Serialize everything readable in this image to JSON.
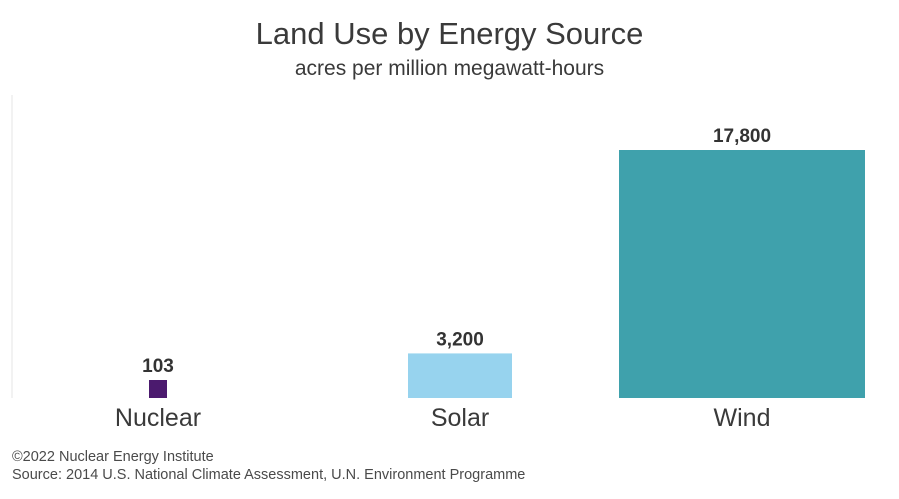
{
  "chart_data": {
    "type": "bar",
    "title": "Land Use by Energy Source",
    "subtitle": "acres per million megawatt-hours",
    "categories": [
      "Nuclear",
      "Solar",
      "Wind"
    ],
    "values": [
      103,
      3200,
      17800
    ],
    "value_labels": [
      "103",
      "3,200",
      "17,800"
    ],
    "colors": [
      "#4b1a6e",
      "#97d3ee",
      "#3fa1ac"
    ],
    "ylim": [
      0,
      17800
    ],
    "grid": false,
    "legend": "none"
  },
  "footer": {
    "copyright": "©2022 Nuclear Energy Institute",
    "source": "Source: 2014 U.S. National Climate Assessment, U.N. Environment Programme"
  }
}
